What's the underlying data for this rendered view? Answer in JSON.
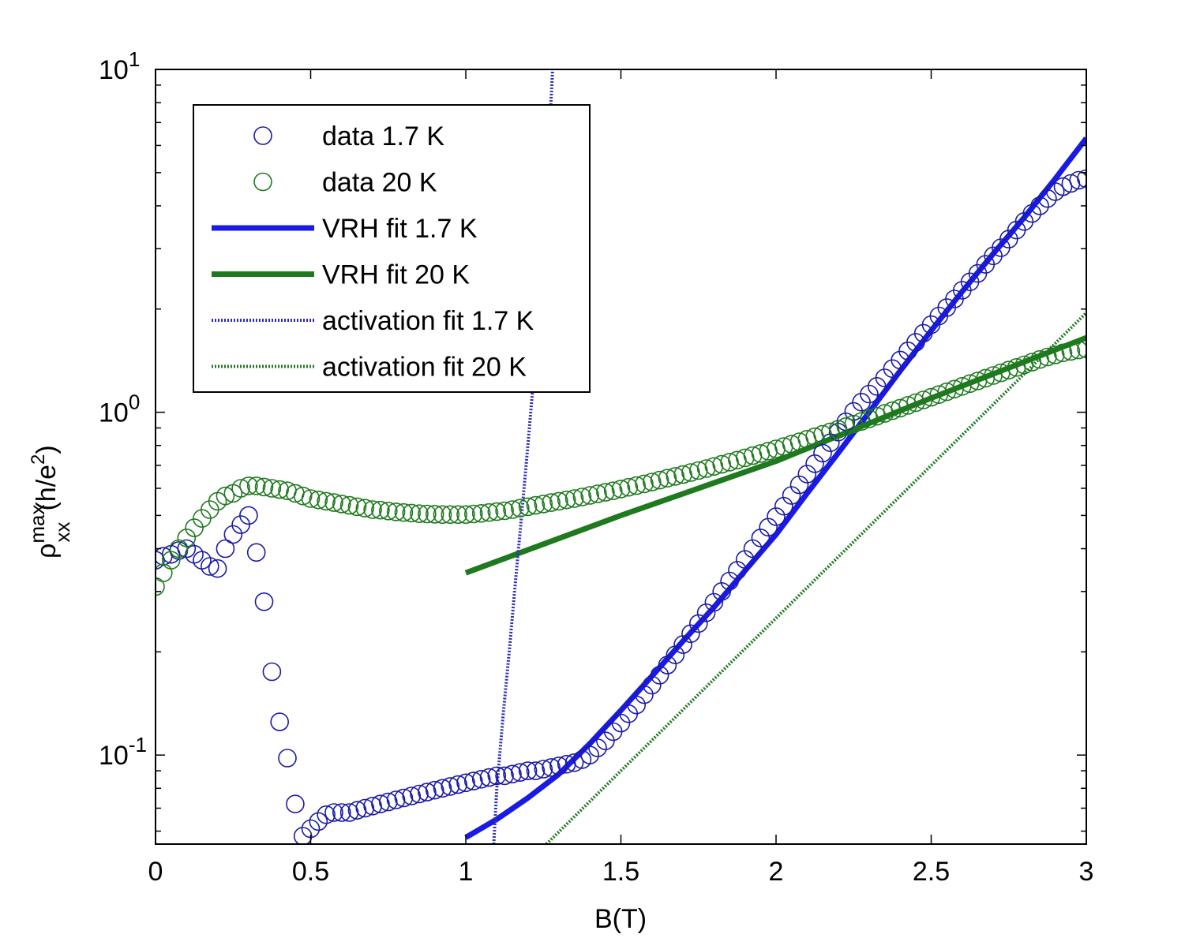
{
  "chart_data": {
    "type": "scatter",
    "xlabel": "B(T)",
    "ylabel": {
      "symbol": "ρ",
      "sup": "max",
      "sub": "xx",
      "unit_pre": "(h/e",
      "unit_sup": "2",
      "unit_post": ")"
    },
    "xlim": [
      0,
      3
    ],
    "ylim": [
      0.055,
      10
    ],
    "yscale": "log",
    "x_ticks": [
      {
        "value": 0,
        "label": "0"
      },
      {
        "value": 0.5,
        "label": "0.5"
      },
      {
        "value": 1,
        "label": "1"
      },
      {
        "value": 1.5,
        "label": "1.5"
      },
      {
        "value": 2,
        "label": "2"
      },
      {
        "value": 2.5,
        "label": "2.5"
      },
      {
        "value": 3,
        "label": "3"
      }
    ],
    "y_ticks": [
      {
        "value": 0.1,
        "base": "10",
        "exp": "-1"
      },
      {
        "value": 1,
        "base": "10",
        "exp": "0"
      },
      {
        "value": 10,
        "base": "10",
        "exp": "1"
      }
    ],
    "legend_position": "top-left",
    "series": [
      {
        "name": "data 1.7 K",
        "kind": "markers",
        "color": "#1a1aa6",
        "x": [
          0,
          0.025,
          0.05,
          0.075,
          0.1,
          0.125,
          0.15,
          0.175,
          0.2,
          0.225,
          0.25,
          0.275,
          0.3,
          0.325,
          0.35,
          0.375,
          0.4,
          0.425,
          0.45,
          0.475,
          0.5,
          0.525,
          0.55,
          0.575,
          0.6,
          0.625,
          0.65,
          0.675,
          0.7,
          0.725,
          0.75,
          0.775,
          0.8,
          0.825,
          0.85,
          0.875,
          0.9,
          0.925,
          0.95,
          0.975,
          1,
          1.025,
          1.05,
          1.075,
          1.1,
          1.125,
          1.15,
          1.175,
          1.2,
          1.225,
          1.25,
          1.275,
          1.3,
          1.325,
          1.35,
          1.375,
          1.4,
          1.425,
          1.45,
          1.475,
          1.5,
          1.525,
          1.55,
          1.575,
          1.6,
          1.625,
          1.65,
          1.675,
          1.7,
          1.725,
          1.75,
          1.775,
          1.8,
          1.825,
          1.85,
          1.875,
          1.9,
          1.925,
          1.95,
          1.975,
          2,
          2.025,
          2.05,
          2.075,
          2.1,
          2.125,
          2.15,
          2.175,
          2.2,
          2.225,
          2.25,
          2.275,
          2.3,
          2.325,
          2.35,
          2.375,
          2.4,
          2.425,
          2.45,
          2.475,
          2.5,
          2.525,
          2.55,
          2.575,
          2.6,
          2.625,
          2.65,
          2.675,
          2.7,
          2.725,
          2.75,
          2.775,
          2.8,
          2.825,
          2.85,
          2.875,
          2.9,
          2.925,
          2.95,
          2.975,
          3
        ],
        "y": [
          0.37,
          0.38,
          0.385,
          0.395,
          0.4,
          0.385,
          0.37,
          0.355,
          0.35,
          0.4,
          0.44,
          0.47,
          0.5,
          0.39,
          0.28,
          0.175,
          0.125,
          0.098,
          0.072,
          0.058,
          0.061,
          0.064,
          0.067,
          0.068,
          0.068,
          0.068,
          0.069,
          0.07,
          0.071,
          0.072,
          0.073,
          0.074,
          0.075,
          0.076,
          0.077,
          0.078,
          0.079,
          0.08,
          0.081,
          0.082,
          0.083,
          0.084,
          0.085,
          0.086,
          0.087,
          0.087,
          0.088,
          0.089,
          0.09,
          0.09,
          0.091,
          0.092,
          0.093,
          0.094,
          0.095,
          0.097,
          0.1,
          0.105,
          0.11,
          0.117,
          0.124,
          0.132,
          0.14,
          0.15,
          0.16,
          0.171,
          0.183,
          0.196,
          0.21,
          0.226,
          0.242,
          0.26,
          0.279,
          0.3,
          0.322,
          0.346,
          0.372,
          0.4,
          0.43,
          0.462,
          0.496,
          0.532,
          0.572,
          0.614,
          0.66,
          0.708,
          0.76,
          0.815,
          0.875,
          0.938,
          1.005,
          1.07,
          1.13,
          1.19,
          1.26,
          1.34,
          1.42,
          1.51,
          1.6,
          1.7,
          1.8,
          1.91,
          2.02,
          2.14,
          2.27,
          2.4,
          2.54,
          2.7,
          2.86,
          3.02,
          3.2,
          3.4,
          3.6,
          3.8,
          4.0,
          4.2,
          4.4,
          4.55,
          4.65,
          4.75,
          4.8
        ]
      },
      {
        "name": "data 20 K",
        "kind": "markers",
        "color": "#1f7a1f",
        "x": [
          0,
          0.025,
          0.05,
          0.075,
          0.1,
          0.125,
          0.15,
          0.175,
          0.2,
          0.225,
          0.25,
          0.275,
          0.3,
          0.325,
          0.35,
          0.375,
          0.4,
          0.425,
          0.45,
          0.475,
          0.5,
          0.525,
          0.55,
          0.575,
          0.6,
          0.625,
          0.65,
          0.675,
          0.7,
          0.725,
          0.75,
          0.775,
          0.8,
          0.825,
          0.85,
          0.875,
          0.9,
          0.925,
          0.95,
          0.975,
          1,
          1.025,
          1.05,
          1.075,
          1.1,
          1.125,
          1.15,
          1.175,
          1.2,
          1.225,
          1.25,
          1.275,
          1.3,
          1.325,
          1.35,
          1.375,
          1.4,
          1.425,
          1.45,
          1.475,
          1.5,
          1.525,
          1.55,
          1.575,
          1.6,
          1.625,
          1.65,
          1.675,
          1.7,
          1.725,
          1.75,
          1.775,
          1.8,
          1.825,
          1.85,
          1.875,
          1.9,
          1.925,
          1.95,
          1.975,
          2,
          2.025,
          2.05,
          2.075,
          2.1,
          2.125,
          2.15,
          2.175,
          2.2,
          2.225,
          2.25,
          2.275,
          2.3,
          2.325,
          2.35,
          2.375,
          2.4,
          2.425,
          2.45,
          2.475,
          2.5,
          2.525,
          2.55,
          2.575,
          2.6,
          2.625,
          2.65,
          2.675,
          2.7,
          2.725,
          2.75,
          2.775,
          2.8,
          2.825,
          2.85,
          2.875,
          2.9,
          2.925,
          2.95,
          2.975,
          3
        ],
        "y": [
          0.31,
          0.34,
          0.37,
          0.4,
          0.43,
          0.46,
          0.49,
          0.52,
          0.55,
          0.57,
          0.58,
          0.6,
          0.61,
          0.61,
          0.605,
          0.6,
          0.595,
          0.59,
          0.58,
          0.57,
          0.56,
          0.555,
          0.55,
          0.545,
          0.54,
          0.535,
          0.53,
          0.525,
          0.52,
          0.518,
          0.515,
          0.512,
          0.51,
          0.508,
          0.506,
          0.505,
          0.504,
          0.503,
          0.503,
          0.503,
          0.503,
          0.505,
          0.507,
          0.51,
          0.513,
          0.516,
          0.52,
          0.525,
          0.53,
          0.535,
          0.54,
          0.545,
          0.55,
          0.555,
          0.56,
          0.566,
          0.572,
          0.578,
          0.584,
          0.59,
          0.597,
          0.604,
          0.611,
          0.618,
          0.626,
          0.634,
          0.642,
          0.65,
          0.658,
          0.667,
          0.676,
          0.685,
          0.695,
          0.705,
          0.715,
          0.725,
          0.736,
          0.747,
          0.758,
          0.77,
          0.782,
          0.794,
          0.807,
          0.82,
          0.834,
          0.848,
          0.862,
          0.877,
          0.892,
          0.908,
          0.924,
          0.94,
          0.957,
          0.974,
          0.992,
          1.01,
          1.028,
          1.047,
          1.066,
          1.086,
          1.106,
          1.126,
          1.147,
          1.168,
          1.19,
          1.212,
          1.234,
          1.257,
          1.28,
          1.303,
          1.327,
          1.351,
          1.375,
          1.4,
          1.425,
          1.45,
          1.47,
          1.49,
          1.505,
          1.52,
          1.53
        ]
      },
      {
        "name": "VRH fit 1.7 K",
        "kind": "line",
        "style": "solid",
        "width": 7,
        "color": "#1a1ae6",
        "x": [
          1,
          1.1,
          1.2,
          1.3,
          1.4,
          1.5,
          1.6,
          1.7,
          1.8,
          1.9,
          2,
          2.1,
          2.2,
          2.3,
          2.4,
          2.5,
          2.6,
          2.7,
          2.8,
          2.9,
          3
        ],
        "y": [
          0.0575,
          0.065,
          0.075,
          0.088,
          0.108,
          0.135,
          0.17,
          0.215,
          0.27,
          0.345,
          0.44,
          0.58,
          0.76,
          1.0,
          1.32,
          1.73,
          2.25,
          2.9,
          3.7,
          4.8,
          6.3
        ]
      },
      {
        "name": "VRH fit 20 K",
        "kind": "line",
        "style": "solid",
        "width": 7,
        "color": "#1f7a1f",
        "x": [
          1,
          1.5,
          2,
          2.5,
          3
        ],
        "y": [
          0.34,
          0.5,
          0.72,
          1.1,
          1.65
        ]
      },
      {
        "name": "activation fit 1.7 K",
        "kind": "line",
        "style": "dotted",
        "width": 4,
        "color": "#2e2eb8",
        "x": [
          1.09,
          1.1,
          1.12,
          1.14,
          1.16,
          1.18,
          1.2,
          1.22,
          1.24,
          1.26,
          1.28
        ],
        "y": [
          0.055,
          0.08,
          0.13,
          0.2,
          0.32,
          0.5,
          0.8,
          1.3,
          2.3,
          4.5,
          10
        ]
      },
      {
        "name": "activation fit 20 K",
        "kind": "line",
        "style": "dotted",
        "width": 4,
        "color": "#1f7a1f",
        "x": [
          1.26,
          3
        ],
        "y": [
          0.055,
          1.95
        ]
      }
    ]
  }
}
